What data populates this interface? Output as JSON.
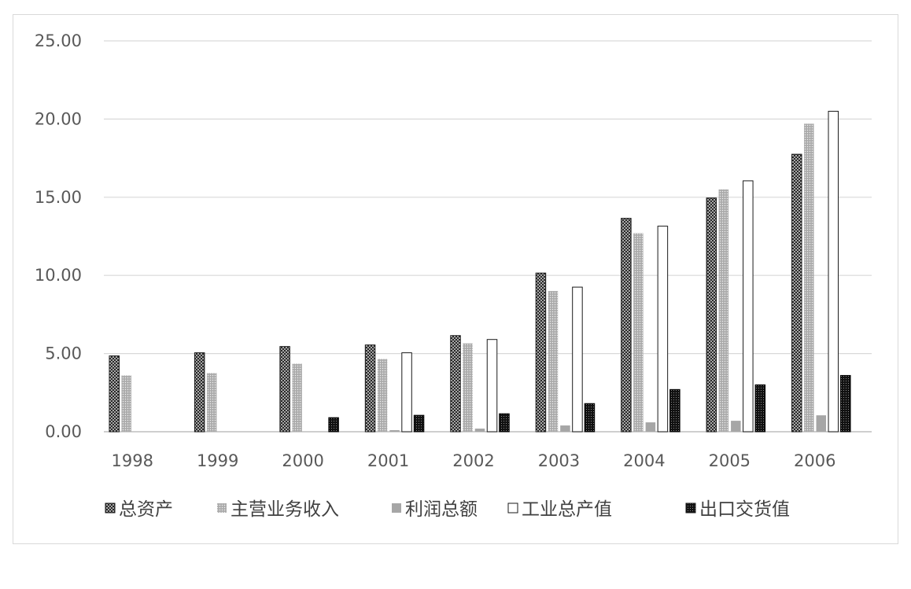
{
  "chart_data": {
    "type": "bar",
    "categories": [
      "1998",
      "1999",
      "2000",
      "2001",
      "2002",
      "2003",
      "2004",
      "2005",
      "2006"
    ],
    "series": [
      {
        "name": "总资产",
        "pattern": "crosshatch",
        "color": "#3a3a3a",
        "values": [
          4.85,
          5.05,
          5.45,
          5.55,
          6.15,
          10.15,
          13.65,
          14.95,
          17.75
        ]
      },
      {
        "name": "主营业务收入",
        "pattern": "dots",
        "color": "#a6a6a6",
        "values": [
          3.6,
          3.75,
          4.35,
          4.65,
          5.65,
          9.0,
          12.7,
          15.5,
          19.7
        ]
      },
      {
        "name": "利润总额",
        "pattern": "solid",
        "color": "#a6a6a6",
        "values": [
          0,
          0,
          0,
          0.1,
          0.2,
          0.4,
          0.6,
          0.7,
          1.05
        ]
      },
      {
        "name": "工业总产值",
        "pattern": "none",
        "color": "#ffffff",
        "values": [
          0,
          0,
          0,
          5.05,
          5.9,
          9.25,
          13.15,
          16.05,
          20.5
        ]
      },
      {
        "name": "出口交货值",
        "pattern": "darkdots",
        "color": "#1a1a1a",
        "values": [
          0,
          0,
          0.9,
          1.05,
          1.15,
          1.8,
          2.7,
          3.0,
          3.6
        ]
      }
    ],
    "yticks": [
      "0.00",
      "5.00",
      "10.00",
      "15.00",
      "20.00",
      "25.00"
    ],
    "ylim": [
      0,
      25
    ],
    "grid": true,
    "legend_position": "bottom"
  }
}
